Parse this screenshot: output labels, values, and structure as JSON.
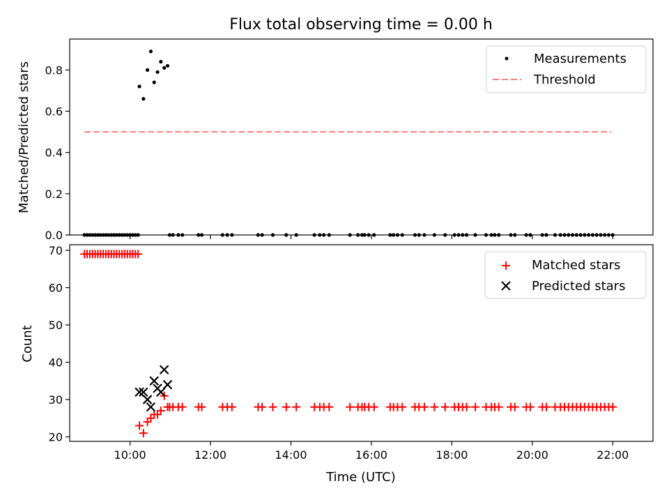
{
  "chart_data": [
    {
      "type": "scatter",
      "title": "Flux total observing time = 0.00 h",
      "xlabel": "",
      "ylabel": "Matched/Predicted stars",
      "xlim": [
        "08:30",
        "23:00"
      ],
      "ylim": [
        0,
        0.95
      ],
      "yticks": [
        "0.0",
        "0.2",
        "0.4",
        "0.6",
        "0.8"
      ],
      "ytick_values": [
        0,
        0.2,
        0.4,
        0.6,
        0.8
      ],
      "xticks_hours": [
        10,
        12,
        14,
        16,
        18,
        20,
        22
      ],
      "grid": false,
      "legend_position": "top-right",
      "series": [
        {
          "name": "Measurements",
          "marker": "dot",
          "color": "#000000",
          "points": [
            [
              "08:52",
              0
            ],
            [
              "08:56",
              0
            ],
            [
              "09:00",
              0
            ],
            [
              "09:04",
              0
            ],
            [
              "09:08",
              0
            ],
            [
              "09:12",
              0
            ],
            [
              "09:16",
              0
            ],
            [
              "09:20",
              0
            ],
            [
              "09:24",
              0
            ],
            [
              "09:28",
              0
            ],
            [
              "09:32",
              0
            ],
            [
              "09:36",
              0
            ],
            [
              "09:40",
              0
            ],
            [
              "09:44",
              0
            ],
            [
              "09:48",
              0
            ],
            [
              "09:52",
              0
            ],
            [
              "09:56",
              0
            ],
            [
              "10:00",
              0
            ],
            [
              "10:04",
              0
            ],
            [
              "10:08",
              0
            ],
            [
              "10:12",
              0
            ],
            [
              "10:14",
              0.72
            ],
            [
              "10:20",
              0.66
            ],
            [
              "10:26",
              0.8
            ],
            [
              "10:31",
              0.89
            ],
            [
              "10:36",
              0.74
            ],
            [
              "10:41",
              0.79
            ],
            [
              "10:46",
              0.84
            ],
            [
              "10:51",
              0.81
            ],
            [
              "10:56",
              0.82
            ],
            [
              "10:59",
              0
            ],
            [
              "11:04",
              0
            ],
            [
              "11:12",
              0
            ],
            [
              "11:18",
              0
            ],
            [
              "11:42",
              0
            ],
            [
              "11:47",
              0
            ],
            [
              "12:18",
              0
            ],
            [
              "12:25",
              0
            ],
            [
              "12:32",
              0
            ],
            [
              "13:11",
              0
            ],
            [
              "13:17",
              0
            ],
            [
              "13:33",
              0
            ],
            [
              "13:53",
              0
            ],
            [
              "14:08",
              0
            ],
            [
              "14:35",
              0
            ],
            [
              "14:43",
              0
            ],
            [
              "14:49",
              0
            ],
            [
              "14:57",
              0
            ],
            [
              "15:28",
              0
            ],
            [
              "15:40",
              0
            ],
            [
              "15:46",
              0
            ],
            [
              "15:50",
              0
            ],
            [
              "15:56",
              0
            ],
            [
              "16:04",
              0
            ],
            [
              "16:28",
              0
            ],
            [
              "16:33",
              0
            ],
            [
              "16:39",
              0
            ],
            [
              "16:46",
              0
            ],
            [
              "17:05",
              0
            ],
            [
              "17:11",
              0
            ],
            [
              "17:19",
              0
            ],
            [
              "17:34",
              0
            ],
            [
              "17:50",
              0
            ],
            [
              "18:04",
              0
            ],
            [
              "18:10",
              0
            ],
            [
              "18:16",
              0
            ],
            [
              "18:22",
              0
            ],
            [
              "18:35",
              0
            ],
            [
              "18:51",
              0
            ],
            [
              "18:59",
              0
            ],
            [
              "19:04",
              0
            ],
            [
              "19:10",
              0
            ],
            [
              "19:28",
              0
            ],
            [
              "19:34",
              0
            ],
            [
              "19:51",
              0
            ],
            [
              "19:57",
              0
            ],
            [
              "20:15",
              0
            ],
            [
              "20:21",
              0
            ],
            [
              "20:34",
              0
            ],
            [
              "20:42",
              0
            ],
            [
              "20:48",
              0
            ],
            [
              "20:54",
              0
            ],
            [
              "21:00",
              0
            ],
            [
              "21:06",
              0
            ],
            [
              "21:12",
              0
            ],
            [
              "21:18",
              0
            ],
            [
              "21:24",
              0
            ],
            [
              "21:30",
              0
            ],
            [
              "21:36",
              0
            ],
            [
              "21:42",
              0
            ],
            [
              "21:48",
              0
            ],
            [
              "21:54",
              0
            ],
            [
              "22:00",
              0
            ]
          ]
        },
        {
          "name": "Threshold",
          "marker": "dashed-line",
          "color": "#ff7f7f",
          "points": [
            [
              "08:52",
              0.5
            ],
            [
              "21:58",
              0.5
            ]
          ]
        }
      ]
    },
    {
      "type": "scatter",
      "title": "",
      "xlabel": "Time (UTC)",
      "ylabel": "Count",
      "xlim": [
        "08:30",
        "23:00"
      ],
      "ylim": [
        18.8,
        71.5
      ],
      "yticks": [
        "20",
        "30",
        "40",
        "50",
        "60",
        "70"
      ],
      "ytick_values": [
        20,
        30,
        40,
        50,
        60,
        70
      ],
      "xticks": [
        "10:00",
        "12:00",
        "14:00",
        "16:00",
        "18:00",
        "20:00",
        "22:00"
      ],
      "xticks_hours": [
        10,
        12,
        14,
        16,
        18,
        20,
        22
      ],
      "grid": false,
      "legend_position": "top-right",
      "series": [
        {
          "name": "Matched stars",
          "marker": "plus",
          "color": "#ff0000",
          "points": [
            [
              "08:52",
              69
            ],
            [
              "08:56",
              69
            ],
            [
              "09:00",
              69
            ],
            [
              "09:04",
              69
            ],
            [
              "09:08",
              69
            ],
            [
              "09:12",
              69
            ],
            [
              "09:16",
              69
            ],
            [
              "09:20",
              69
            ],
            [
              "09:24",
              69
            ],
            [
              "09:28",
              69
            ],
            [
              "09:32",
              69
            ],
            [
              "09:36",
              69
            ],
            [
              "09:40",
              69
            ],
            [
              "09:44",
              69
            ],
            [
              "09:48",
              69
            ],
            [
              "09:52",
              69
            ],
            [
              "09:56",
              69
            ],
            [
              "10:00",
              69
            ],
            [
              "10:04",
              69
            ],
            [
              "10:08",
              69
            ],
            [
              "10:12",
              69
            ],
            [
              "10:14",
              23
            ],
            [
              "10:20",
              21
            ],
            [
              "10:26",
              24
            ],
            [
              "10:31",
              25
            ],
            [
              "10:36",
              26
            ],
            [
              "10:41",
              26
            ],
            [
              "10:46",
              27
            ],
            [
              "10:51",
              31
            ],
            [
              "10:56",
              28
            ],
            [
              "10:59",
              28
            ],
            [
              "11:04",
              28
            ],
            [
              "11:12",
              28
            ],
            [
              "11:18",
              28
            ],
            [
              "11:42",
              28
            ],
            [
              "11:47",
              28
            ],
            [
              "12:18",
              28
            ],
            [
              "12:25",
              28
            ],
            [
              "12:32",
              28
            ],
            [
              "13:11",
              28
            ],
            [
              "13:17",
              28
            ],
            [
              "13:33",
              28
            ],
            [
              "13:53",
              28
            ],
            [
              "14:08",
              28
            ],
            [
              "14:35",
              28
            ],
            [
              "14:43",
              28
            ],
            [
              "14:49",
              28
            ],
            [
              "14:57",
              28
            ],
            [
              "15:28",
              28
            ],
            [
              "15:40",
              28
            ],
            [
              "15:46",
              28
            ],
            [
              "15:50",
              28
            ],
            [
              "15:56",
              28
            ],
            [
              "16:04",
              28
            ],
            [
              "16:28",
              28
            ],
            [
              "16:33",
              28
            ],
            [
              "16:39",
              28
            ],
            [
              "16:46",
              28
            ],
            [
              "17:05",
              28
            ],
            [
              "17:11",
              28
            ],
            [
              "17:19",
              28
            ],
            [
              "17:34",
              28
            ],
            [
              "17:50",
              28
            ],
            [
              "18:04",
              28
            ],
            [
              "18:10",
              28
            ],
            [
              "18:16",
              28
            ],
            [
              "18:22",
              28
            ],
            [
              "18:35",
              28
            ],
            [
              "18:51",
              28
            ],
            [
              "18:59",
              28
            ],
            [
              "19:04",
              28
            ],
            [
              "19:10",
              28
            ],
            [
              "19:28",
              28
            ],
            [
              "19:34",
              28
            ],
            [
              "19:51",
              28
            ],
            [
              "19:57",
              28
            ],
            [
              "20:15",
              28
            ],
            [
              "20:21",
              28
            ],
            [
              "20:34",
              28
            ],
            [
              "20:42",
              28
            ],
            [
              "20:48",
              28
            ],
            [
              "20:54",
              28
            ],
            [
              "21:00",
              28
            ],
            [
              "21:06",
              28
            ],
            [
              "21:12",
              28
            ],
            [
              "21:18",
              28
            ],
            [
              "21:24",
              28
            ],
            [
              "21:30",
              28
            ],
            [
              "21:36",
              28
            ],
            [
              "21:42",
              28
            ],
            [
              "21:48",
              28
            ],
            [
              "21:54",
              28
            ],
            [
              "22:00",
              28
            ]
          ]
        },
        {
          "name": "Predicted stars",
          "marker": "x",
          "color": "#000000",
          "points": [
            [
              "10:14",
              32
            ],
            [
              "10:20",
              32
            ],
            [
              "10:26",
              30
            ],
            [
              "10:31",
              28
            ],
            [
              "10:36",
              35
            ],
            [
              "10:41",
              33
            ],
            [
              "10:46",
              32
            ],
            [
              "10:51",
              38
            ],
            [
              "10:56",
              34
            ]
          ]
        }
      ]
    }
  ]
}
